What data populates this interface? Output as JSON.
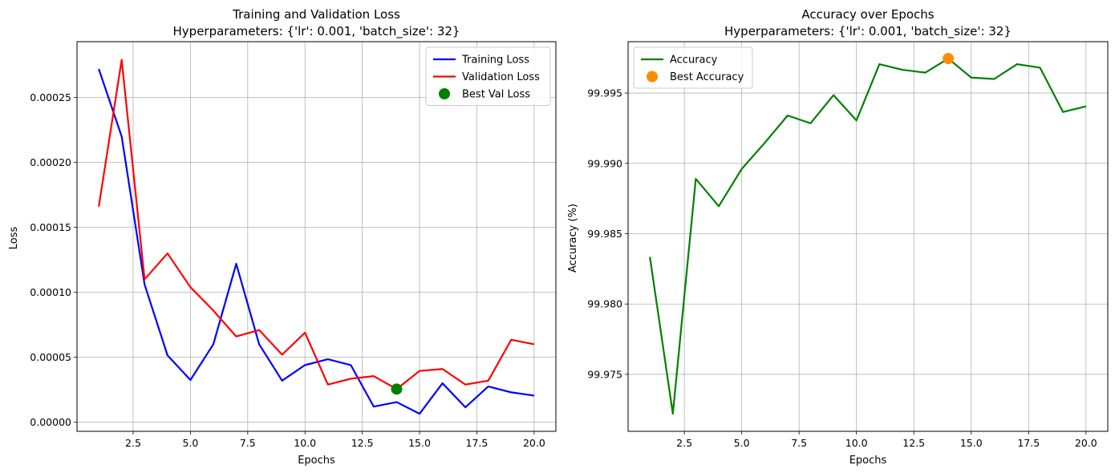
{
  "chart_data": [
    {
      "type": "line",
      "title": "Training and Validation Loss",
      "subtitle": "Hyperparameters: {'lr': 0.001, 'batch_size': 32}",
      "xlabel": "Epochs",
      "ylabel": "Loss",
      "xlim": [
        0.05,
        20.95
      ],
      "ylim": [
        -7e-06,
        0.000293
      ],
      "xticks": [
        2.5,
        5.0,
        7.5,
        10.0,
        12.5,
        15.0,
        17.5,
        20.0
      ],
      "xtick_labels": [
        "2.5",
        "5.0",
        "7.5",
        "10.0",
        "12.5",
        "15.0",
        "17.5",
        "20.0"
      ],
      "yticks": [
        0.0,
        5e-05,
        0.0001,
        0.00015,
        0.0002,
        0.00025
      ],
      "ytick_labels": [
        "0.00000",
        "0.00005",
        "0.00010",
        "0.00015",
        "0.00020",
        "0.00025"
      ],
      "grid": true,
      "legend_position": "upper-right",
      "x": [
        1,
        2,
        3,
        4,
        5,
        6,
        7,
        8,
        9,
        10,
        11,
        12,
        13,
        14,
        15,
        16,
        17,
        18,
        19,
        20
      ],
      "series": [
        {
          "name": "Training Loss",
          "color": "#0000ff",
          "values": [
            0.000272,
            0.00022,
            0.000106,
            5.15e-05,
            3.25e-05,
            6e-05,
            0.000122,
            6e-05,
            3.2e-05,
            4.4e-05,
            4.85e-05,
            4.4e-05,
            1.2e-05,
            1.55e-05,
            6.5e-06,
            3e-05,
            1.15e-05,
            2.75e-05,
            2.3e-05,
            2.05e-05
          ]
        },
        {
          "name": "Validation Loss",
          "color": "#ff0000",
          "values": [
            0.000166,
            0.000279,
            0.00011,
            0.00013,
            0.000104,
            8.6e-05,
            6.6e-05,
            7.1e-05,
            5.2e-05,
            6.9e-05,
            2.9e-05,
            3.35e-05,
            3.55e-05,
            2.55e-05,
            3.95e-05,
            4.1e-05,
            2.9e-05,
            3.2e-05,
            6.35e-05,
            6e-05
          ]
        }
      ],
      "marker": {
        "name": "Best Val Loss",
        "color": "#008000",
        "x": 14,
        "y": 2.55e-05
      }
    },
    {
      "type": "line",
      "title": "Accuracy over Epochs",
      "subtitle": "Hyperparameters: {'lr': 0.001, 'batch_size': 32}",
      "xlabel": "Epochs",
      "ylabel": "Accuracy (%)",
      "xlim": [
        0.05,
        20.95
      ],
      "ylim": [
        99.97095,
        99.99865
      ],
      "xticks": [
        2.5,
        5.0,
        7.5,
        10.0,
        12.5,
        15.0,
        17.5,
        20.0
      ],
      "xtick_labels": [
        "2.5",
        "5.0",
        "7.5",
        "10.0",
        "12.5",
        "15.0",
        "17.5",
        "20.0"
      ],
      "yticks": [
        99.975,
        99.98,
        99.985,
        99.99,
        99.995
      ],
      "ytick_labels": [
        "99.975",
        "99.980",
        "99.985",
        "99.990",
        "99.995"
      ],
      "grid": true,
      "legend_position": "upper-left",
      "x": [
        1,
        2,
        3,
        4,
        5,
        6,
        7,
        8,
        9,
        10,
        11,
        12,
        13,
        14,
        15,
        16,
        17,
        18,
        19,
        20
      ],
      "series": [
        {
          "name": "Accuracy",
          "color": "#008000",
          "values": [
            99.98335,
            99.9722,
            99.9889,
            99.98695,
            99.9896,
            99.99145,
            99.9934,
            99.99285,
            99.99485,
            99.99305,
            99.99705,
            99.99665,
            99.99645,
            99.99745,
            99.9961,
            99.996,
            99.99705,
            99.9968,
            99.99365,
            99.99405
          ]
        }
      ],
      "marker": {
        "name": "Best Accuracy",
        "color": "#ff8c00",
        "x": 14,
        "y": 99.99745
      }
    }
  ]
}
